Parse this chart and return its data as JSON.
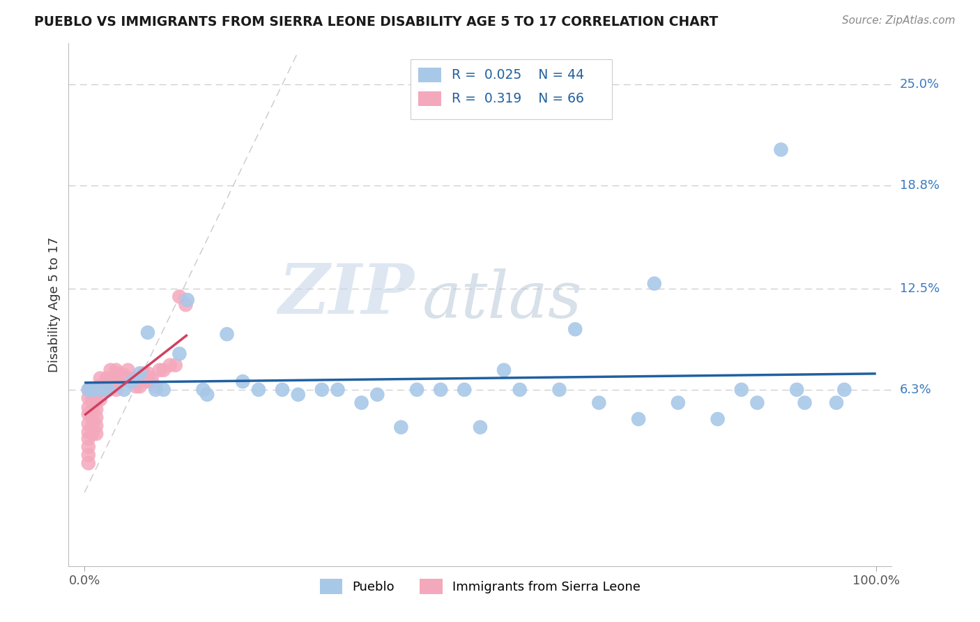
{
  "title": "PUEBLO VS IMMIGRANTS FROM SIERRA LEONE DISABILITY AGE 5 TO 17 CORRELATION CHART",
  "source": "Source: ZipAtlas.com",
  "ylabel": "Disability Age 5 to 17",
  "xlim": [
    -0.02,
    1.02
  ],
  "ylim": [
    -0.045,
    0.275
  ],
  "ytick_vals": [
    0.063,
    0.125,
    0.188,
    0.25
  ],
  "ytick_labels": [
    "6.3%",
    "12.5%",
    "18.8%",
    "25.0%"
  ],
  "xtick_vals": [
    0.0,
    1.0
  ],
  "xtick_labels": [
    "0.0%",
    "100.0%"
  ],
  "pueblo_color": "#a8c8e8",
  "sierra_color": "#f4a8bc",
  "pueblo_line_color": "#2060a0",
  "sierra_line_color": "#d04060",
  "diagonal_color": "#c8c0cc",
  "r_pueblo": "0.025",
  "n_pueblo": "44",
  "r_sierra": "0.319",
  "n_sierra": "66",
  "watermark_zip": "ZIP",
  "watermark_atlas": "atlas",
  "pueblo_x": [
    0.005,
    0.08,
    0.13,
    0.18,
    0.01,
    0.03,
    0.05,
    0.07,
    0.1,
    0.12,
    0.15,
    0.22,
    0.25,
    0.3,
    0.35,
    0.4,
    0.45,
    0.5,
    0.55,
    0.6,
    0.65,
    0.7,
    0.75,
    0.8,
    0.85,
    0.9,
    0.95,
    0.88,
    0.02,
    0.06,
    0.09,
    0.155,
    0.2,
    0.27,
    0.32,
    0.37,
    0.42,
    0.48,
    0.53,
    0.62,
    0.72,
    0.83,
    0.91,
    0.96
  ],
  "pueblo_y": [
    0.063,
    0.098,
    0.118,
    0.097,
    0.063,
    0.063,
    0.063,
    0.073,
    0.063,
    0.085,
    0.063,
    0.063,
    0.063,
    0.063,
    0.055,
    0.04,
    0.063,
    0.04,
    0.063,
    0.063,
    0.055,
    0.045,
    0.055,
    0.045,
    0.055,
    0.063,
    0.055,
    0.21,
    0.063,
    0.068,
    0.063,
    0.06,
    0.068,
    0.06,
    0.063,
    0.06,
    0.063,
    0.063,
    0.075,
    0.1,
    0.128,
    0.063,
    0.055,
    0.063
  ],
  "sierra_x": [
    0.005,
    0.005,
    0.005,
    0.005,
    0.005,
    0.005,
    0.005,
    0.005,
    0.005,
    0.005,
    0.008,
    0.01,
    0.01,
    0.01,
    0.01,
    0.01,
    0.01,
    0.012,
    0.015,
    0.015,
    0.015,
    0.015,
    0.015,
    0.015,
    0.018,
    0.02,
    0.02,
    0.02,
    0.02,
    0.022,
    0.025,
    0.025,
    0.028,
    0.028,
    0.03,
    0.03,
    0.03,
    0.033,
    0.035,
    0.035,
    0.038,
    0.04,
    0.04,
    0.043,
    0.045,
    0.05,
    0.052,
    0.055,
    0.058,
    0.06,
    0.063,
    0.065,
    0.068,
    0.07,
    0.075,
    0.078,
    0.08,
    0.083,
    0.085,
    0.09,
    0.095,
    0.1,
    0.108,
    0.115,
    0.12,
    0.128
  ],
  "sierra_y": [
    0.063,
    0.058,
    0.052,
    0.048,
    0.042,
    0.037,
    0.033,
    0.028,
    0.023,
    0.018,
    0.063,
    0.063,
    0.057,
    0.051,
    0.046,
    0.041,
    0.036,
    0.063,
    0.063,
    0.057,
    0.051,
    0.046,
    0.041,
    0.036,
    0.065,
    0.063,
    0.063,
    0.057,
    0.07,
    0.063,
    0.063,
    0.063,
    0.07,
    0.065,
    0.068,
    0.063,
    0.063,
    0.075,
    0.07,
    0.068,
    0.065,
    0.075,
    0.063,
    0.073,
    0.07,
    0.072,
    0.07,
    0.075,
    0.068,
    0.068,
    0.07,
    0.065,
    0.068,
    0.065,
    0.073,
    0.068,
    0.073,
    0.068,
    0.07,
    0.065,
    0.075,
    0.075,
    0.078,
    0.078,
    0.12,
    0.115
  ]
}
